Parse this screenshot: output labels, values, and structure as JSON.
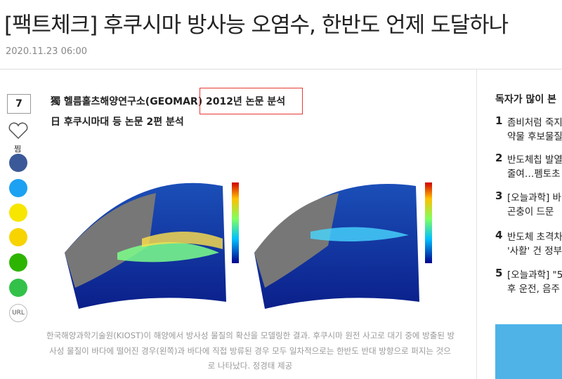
{
  "header": {
    "title": "[팩트체크] 후쿠시마 방사능 오염수, 한반도 언제 도달하나",
    "date": "2020.11.23 06:00"
  },
  "share": {
    "like_count": "7",
    "save": "찜",
    "url": "URL"
  },
  "article": {
    "subheads": [
      "獨 헬름홀츠해양연구소(GEOMAR) 2012년 논문 분석",
      "日 후쿠시마대 등 논문 2편 분석"
    ],
    "caption": [
      "한국해양과학기술원(KIOST)이 해양에서 방사성 물질의 확산을 모델링한 결과. 후쿠시마 원전 사고로 대기 중에 방출된 방",
      "사성 물질이 바다에 떨어진 경우(왼쪽)과 바다에 직접 방류된 경우 모두 일차적으로는 한반도 반대 방향으로 퍼지는 것으",
      "로 나타났다. 정경태 제공"
    ]
  },
  "sidebar": {
    "title": "독자가 많이 본",
    "items": [
      {
        "rank": "1",
        "lines": [
          "좀비처럼 죽지",
          "약물 후보물질"
        ]
      },
      {
        "rank": "2",
        "lines": [
          "반도체칩 발열",
          "줄여…펨토초"
        ]
      },
      {
        "rank": "3",
        "lines": [
          "[오늘과학] 바",
          "곤충이 드문 "
        ]
      },
      {
        "rank": "4",
        "lines": [
          "반도체 초격차",
          "'사활' 건 정부"
        ]
      },
      {
        "rank": "5",
        "lines": [
          "[오늘과학] \"5",
          "후 운전, 음주"
        ]
      }
    ]
  }
}
